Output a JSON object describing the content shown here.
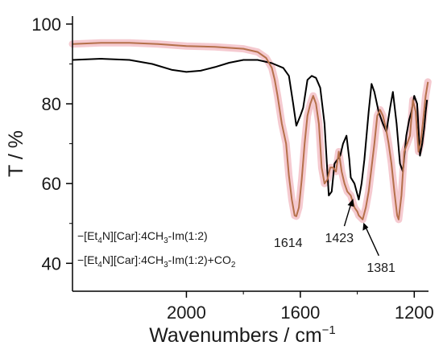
{
  "chart_data": {
    "type": "line",
    "xlabel": "Wavenumbers / cm",
    "xlabel_sup": "−1",
    "ylabel": "T / %",
    "xlim": [
      2400,
      1150
    ],
    "ylim": [
      33,
      102
    ],
    "x_reversed": true,
    "x_ticks": [
      2000,
      1600,
      1200
    ],
    "y_ticks": [
      40,
      60,
      80,
      100
    ],
    "grid": false,
    "legend_position": "bottom-left",
    "colors": {
      "series1": "#000000",
      "series2": "#b5704a",
      "halo": "#f2b8c0"
    },
    "series": [
      {
        "name": "[Et4N][Car]:4CH3-Im(1:2)",
        "legend": {
          "prefix": "−[Et",
          "sub1": "4",
          "mid1": "N][Car]:4CH",
          "sub2": "3",
          "suffix": "-Im(1:2)"
        },
        "points": [
          [
            2400,
            91.0
          ],
          [
            2300,
            91.3
          ],
          [
            2200,
            91.0
          ],
          [
            2120,
            90.0
          ],
          [
            2050,
            88.5
          ],
          [
            2000,
            88.0
          ],
          [
            1950,
            88.3
          ],
          [
            1900,
            89.2
          ],
          [
            1850,
            90.3
          ],
          [
            1800,
            91.0
          ],
          [
            1750,
            91.0
          ],
          [
            1700,
            90.2
          ],
          [
            1660,
            89.0
          ],
          [
            1640,
            87.0
          ],
          [
            1625,
            80.0
          ],
          [
            1614,
            74.5
          ],
          [
            1600,
            77.0
          ],
          [
            1590,
            79.0
          ],
          [
            1575,
            86.0
          ],
          [
            1560,
            87.0
          ],
          [
            1545,
            86.5
          ],
          [
            1530,
            84.0
          ],
          [
            1515,
            75.0
          ],
          [
            1500,
            57.0
          ],
          [
            1490,
            58.0
          ],
          [
            1480,
            65.0
          ],
          [
            1470,
            66.0
          ],
          [
            1460,
            67.0
          ],
          [
            1450,
            70.0
          ],
          [
            1438,
            72.0
          ],
          [
            1428,
            66.0
          ],
          [
            1423,
            61.5
          ],
          [
            1410,
            60.0
          ],
          [
            1395,
            56.0
          ],
          [
            1385,
            60.0
          ],
          [
            1375,
            66.0
          ],
          [
            1360,
            78.0
          ],
          [
            1350,
            85.0
          ],
          [
            1340,
            83.0
          ],
          [
            1325,
            78.0
          ],
          [
            1310,
            75.0
          ],
          [
            1298,
            73.0
          ],
          [
            1285,
            79.0
          ],
          [
            1275,
            83.0
          ],
          [
            1262,
            75.0
          ],
          [
            1250,
            65.0
          ],
          [
            1240,
            63.0
          ],
          [
            1228,
            72.0
          ],
          [
            1218,
            76.0
          ],
          [
            1210,
            78.0
          ],
          [
            1200,
            82.0
          ],
          [
            1190,
            80.0
          ],
          [
            1180,
            67.0
          ],
          [
            1172,
            70.0
          ],
          [
            1165,
            74.0
          ],
          [
            1160,
            78.0
          ],
          [
            1155,
            81.0
          ]
        ]
      },
      {
        "name": "[Et4N][Car]:4CH3-Im(1:2)+CO2",
        "legend": {
          "prefix": "−[Et",
          "sub1": "4",
          "mid1": "N][Car]:4CH",
          "sub2": "3",
          "suffix": "-Im(1:2)+CO",
          "sub3": "2"
        },
        "points": [
          [
            2400,
            95.0
          ],
          [
            2300,
            95.3
          ],
          [
            2200,
            95.3
          ],
          [
            2100,
            95.0
          ],
          [
            2000,
            94.5
          ],
          [
            1900,
            94.3
          ],
          [
            1800,
            93.8
          ],
          [
            1750,
            93.0
          ],
          [
            1720,
            91.5
          ],
          [
            1700,
            89.0
          ],
          [
            1690,
            86.0
          ],
          [
            1680,
            82.0
          ],
          [
            1665,
            75.0
          ],
          [
            1650,
            70.0
          ],
          [
            1640,
            62.0
          ],
          [
            1630,
            56.0
          ],
          [
            1620,
            52.0
          ],
          [
            1614,
            51.8
          ],
          [
            1605,
            54.0
          ],
          [
            1595,
            61.0
          ],
          [
            1585,
            70.0
          ],
          [
            1575,
            77.0
          ],
          [
            1565,
            80.0
          ],
          [
            1555,
            82.0
          ],
          [
            1545,
            80.0
          ],
          [
            1535,
            75.0
          ],
          [
            1525,
            64.0
          ],
          [
            1515,
            60.0
          ],
          [
            1505,
            61.0
          ],
          [
            1495,
            64.0
          ],
          [
            1485,
            64.0
          ],
          [
            1475,
            63.0
          ],
          [
            1465,
            68.0
          ],
          [
            1455,
            63.0
          ],
          [
            1445,
            60.0
          ],
          [
            1435,
            58.0
          ],
          [
            1423,
            57.0
          ],
          [
            1410,
            54.0
          ],
          [
            1400,
            53.0
          ],
          [
            1395,
            52.0
          ],
          [
            1381,
            51.0
          ],
          [
            1370,
            54.0
          ],
          [
            1360,
            58.0
          ],
          [
            1350,
            64.0
          ],
          [
            1340,
            70.0
          ],
          [
            1330,
            77.0
          ],
          [
            1320,
            78.5
          ],
          [
            1310,
            77.0
          ],
          [
            1300,
            74.0
          ],
          [
            1290,
            70.0
          ],
          [
            1280,
            65.0
          ],
          [
            1270,
            58.0
          ],
          [
            1260,
            52.0
          ],
          [
            1255,
            51.0
          ],
          [
            1245,
            57.0
          ],
          [
            1235,
            68.0
          ],
          [
            1225,
            70.0
          ],
          [
            1215,
            72.0
          ],
          [
            1205,
            81.0
          ],
          [
            1195,
            78.0
          ],
          [
            1185,
            68.0
          ],
          [
            1178,
            70.0
          ],
          [
            1170,
            75.0
          ],
          [
            1160,
            82.0
          ],
          [
            1152,
            85.5
          ]
        ]
      }
    ],
    "annotations": [
      {
        "text": "1614",
        "pos": "below-left"
      },
      {
        "text": "1423",
        "pos": "below-left-arrow"
      },
      {
        "text": "1381",
        "pos": "below-right-arrow"
      }
    ]
  }
}
